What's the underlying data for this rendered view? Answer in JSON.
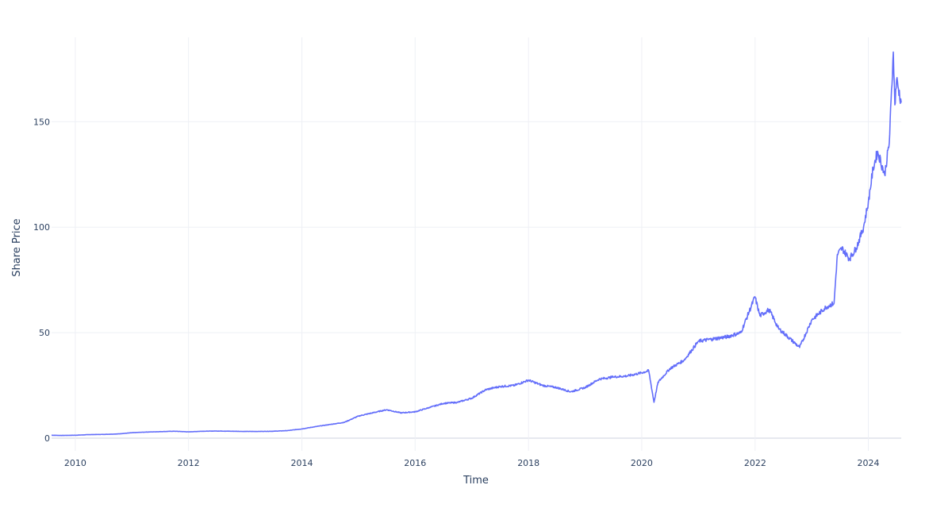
{
  "chart_data": {
    "type": "line",
    "title": "",
    "xlabel": "Time",
    "ylabel": "Share Price",
    "x_tick_labels": [
      "2010",
      "2012",
      "2014",
      "2016",
      "2018",
      "2020",
      "2022",
      "2024"
    ],
    "y_tick_labels": [
      "0",
      "50",
      "100",
      "150"
    ],
    "xlim": [
      "2009-08-01",
      "2024-07-31"
    ],
    "ylim": [
      -6,
      190
    ],
    "grid": true,
    "legend": "none",
    "series": [
      {
        "color": "#636efa",
        "x": [
          "2009-08-01",
          "2009-10-01",
          "2010-01-01",
          "2010-04-01",
          "2010-07-01",
          "2010-10-01",
          "2011-01-01",
          "2011-04-01",
          "2011-07-01",
          "2011-10-01",
          "2012-01-01",
          "2012-04-01",
          "2012-07-01",
          "2012-10-01",
          "2013-01-01",
          "2013-04-01",
          "2013-07-01",
          "2013-10-01",
          "2014-01-01",
          "2014-04-01",
          "2014-07-01",
          "2014-10-01",
          "2015-01-01",
          "2015-04-01",
          "2015-07-01",
          "2015-10-01",
          "2016-01-01",
          "2016-04-01",
          "2016-07-01",
          "2016-10-01",
          "2017-01-01",
          "2017-04-01",
          "2017-07-01",
          "2017-10-01",
          "2018-01-01",
          "2018-04-01",
          "2018-07-01",
          "2018-10-01",
          "2019-01-01",
          "2019-04-01",
          "2019-07-01",
          "2019-10-01",
          "2020-01-01",
          "2020-02-15",
          "2020-03-20",
          "2020-04-15",
          "2020-07-01",
          "2020-10-01",
          "2021-01-01",
          "2021-04-01",
          "2021-07-01",
          "2021-10-01",
          "2021-12-31",
          "2022-02-01",
          "2022-04-01",
          "2022-06-01",
          "2022-08-01",
          "2022-10-15",
          "2023-01-01",
          "2023-04-01",
          "2023-05-25",
          "2023-06-15",
          "2023-07-15",
          "2023-09-01",
          "2023-10-15",
          "2023-12-01",
          "2024-01-01",
          "2024-02-01",
          "2024-03-01",
          "2024-04-15",
          "2024-05-15",
          "2024-06-10",
          "2024-06-20",
          "2024-07-01",
          "2024-07-31"
        ],
        "y": [
          1.4,
          1.3,
          1.4,
          1.7,
          1.8,
          2.0,
          2.6,
          2.9,
          3.1,
          3.3,
          3.0,
          3.3,
          3.4,
          3.3,
          3.2,
          3.2,
          3.3,
          3.6,
          4.4,
          5.5,
          6.5,
          7.5,
          10.5,
          12.0,
          13.5,
          12.0,
          12.5,
          14.5,
          16.5,
          17.0,
          19.0,
          23.0,
          24.5,
          25.0,
          27.5,
          25.0,
          24.0,
          22.0,
          24.0,
          28.0,
          29.0,
          29.5,
          31.0,
          32.0,
          17.0,
          26.5,
          33.0,
          37.0,
          46.0,
          47.0,
          48.0,
          50.0,
          67.0,
          58.0,
          61.0,
          52.0,
          48.0,
          43.0,
          56.0,
          62.0,
          64.0,
          87.0,
          90.0,
          85.0,
          90.0,
          100.0,
          112.0,
          128.0,
          136.0,
          125.0,
          140.0,
          183.0,
          158.0,
          170.0,
          159.0
        ]
      }
    ]
  }
}
